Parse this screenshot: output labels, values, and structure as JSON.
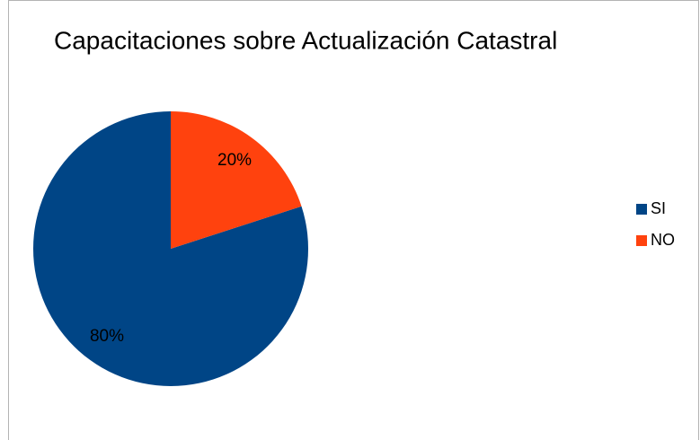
{
  "chart_data": {
    "type": "pie",
    "title": "Capacitaciones sobre Actualización Catastral",
    "categories": [
      "SI",
      "NO"
    ],
    "values": [
      80,
      20
    ],
    "value_labels": [
      "80%",
      "20%"
    ],
    "colors": [
      "#004586",
      "#ff420e"
    ],
    "legend": "right"
  }
}
